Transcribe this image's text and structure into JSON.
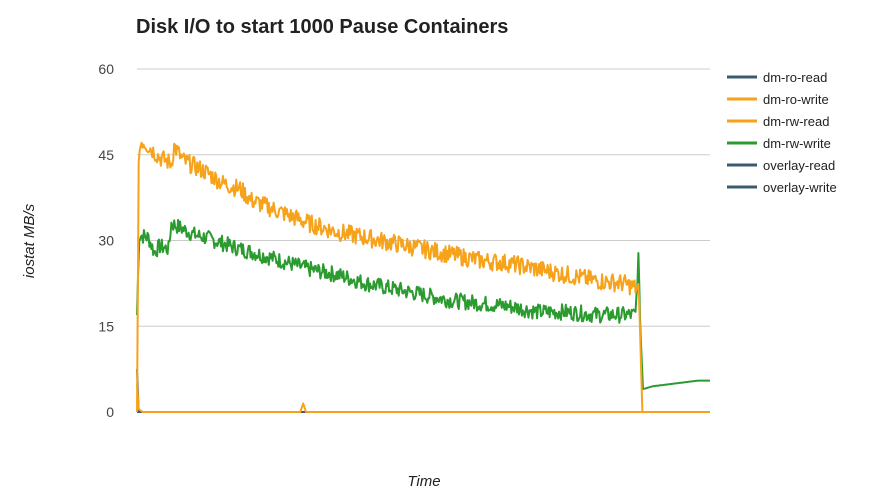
{
  "chart_data": {
    "type": "line",
    "title": "Disk I/O to start 1000 Pause Containers",
    "xlabel": "Time",
    "ylabel": "iostat MB/s",
    "ylim": [
      0,
      60
    ],
    "y_ticks": [
      0,
      15,
      30,
      45,
      60
    ],
    "x_range": [
      0,
      100
    ],
    "grid": true,
    "legend_position": "right",
    "series": [
      {
        "name": "dm-ro-read",
        "color": "#3b5c6e",
        "points": [
          [
            0,
            7.5
          ],
          [
            0.3,
            0
          ],
          [
            100,
            0
          ]
        ]
      },
      {
        "name": "dm-ro-write",
        "color": "#f7a21b",
        "points": [
          [
            0,
            5
          ],
          [
            0.3,
            0.5
          ],
          [
            1,
            0
          ],
          [
            28.5,
            0
          ],
          [
            29,
            1.5
          ],
          [
            29.5,
            0
          ],
          [
            100,
            0
          ]
        ]
      },
      {
        "name": "dm-rw-read",
        "color": "#f7a21b",
        "points": [
          [
            0,
            0
          ],
          [
            0.3,
            45
          ],
          [
            0.8,
            47.5
          ],
          [
            2,
            46.5
          ],
          [
            4,
            44.5
          ],
          [
            6,
            43.5
          ],
          [
            6.5,
            46.5
          ],
          [
            8,
            44
          ],
          [
            10,
            43
          ],
          [
            12,
            42
          ],
          [
            15,
            40
          ],
          [
            18,
            39
          ],
          [
            20,
            37
          ],
          [
            25,
            35
          ],
          [
            30,
            33
          ],
          [
            35,
            31.5
          ],
          [
            40,
            30.5
          ],
          [
            45,
            29.5
          ],
          [
            50,
            28.5
          ],
          [
            55,
            27.5
          ],
          [
            60,
            26.5
          ],
          [
            65,
            26
          ],
          [
            70,
            25
          ],
          [
            75,
            24
          ],
          [
            80,
            23
          ],
          [
            85,
            22.5
          ],
          [
            87.5,
            21.5
          ],
          [
            87.8,
            14
          ],
          [
            88.2,
            0
          ],
          [
            100,
            0
          ]
        ]
      },
      {
        "name": "dm-rw-write",
        "color": "#2b9a2f",
        "points": [
          [
            0,
            17
          ],
          [
            0.4,
            31
          ],
          [
            2,
            30.5
          ],
          [
            3,
            28
          ],
          [
            4,
            29
          ],
          [
            5.5,
            28.5
          ],
          [
            6,
            33
          ],
          [
            8,
            32
          ],
          [
            10,
            31
          ],
          [
            12,
            30.5
          ],
          [
            15,
            29.5
          ],
          [
            18,
            28.5
          ],
          [
            20,
            28
          ],
          [
            25,
            26.5
          ],
          [
            30,
            25
          ],
          [
            35,
            24
          ],
          [
            40,
            22.5
          ],
          [
            45,
            21.5
          ],
          [
            50,
            20.5
          ],
          [
            55,
            19.5
          ],
          [
            60,
            19
          ],
          [
            65,
            18.5
          ],
          [
            70,
            17.5
          ],
          [
            75,
            17.5
          ],
          [
            80,
            17
          ],
          [
            85,
            17
          ],
          [
            87,
            17
          ],
          [
            87.5,
            27
          ],
          [
            87.8,
            16
          ],
          [
            88.3,
            4
          ],
          [
            90,
            4.5
          ],
          [
            94,
            5
          ],
          [
            98,
            5.5
          ],
          [
            100,
            5.5
          ]
        ]
      },
      {
        "name": "overlay-read",
        "color": "#3b5c6e",
        "points": [
          [
            0,
            0
          ],
          [
            100,
            0
          ]
        ]
      },
      {
        "name": "overlay-write",
        "color": "#3b5c6e",
        "points": [
          [
            0,
            0
          ],
          [
            100,
            0
          ]
        ]
      }
    ]
  }
}
